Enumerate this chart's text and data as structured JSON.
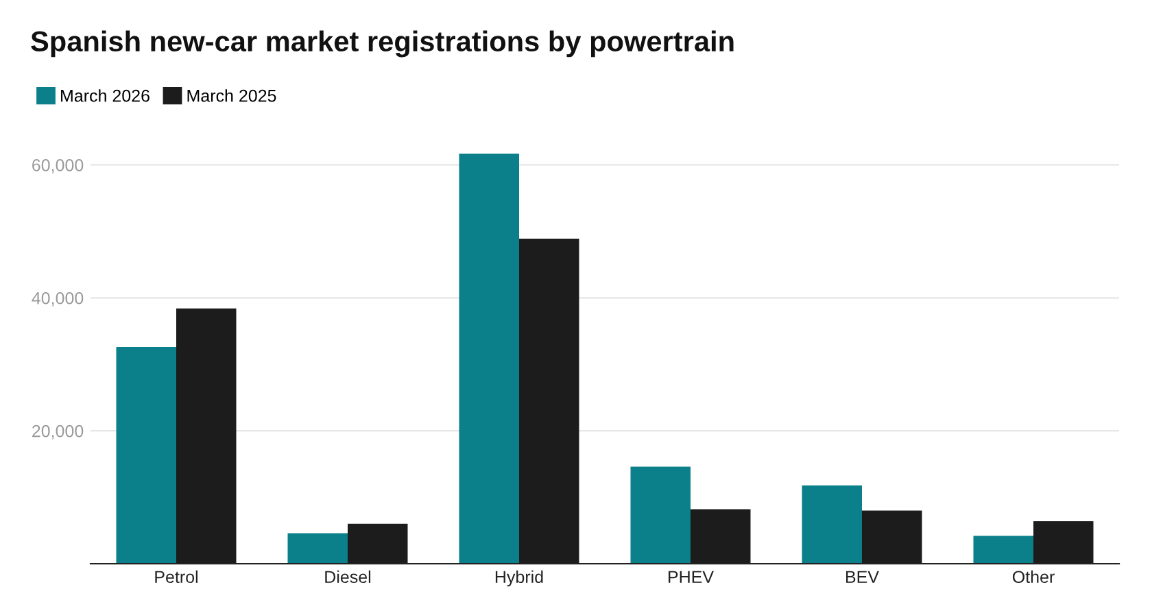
{
  "chart_data": {
    "type": "bar",
    "title": "Spanish new-car market registrations by powertrain",
    "categories": [
      "Petrol",
      "Diesel",
      "Hybrid",
      "PHEV",
      "BEV",
      "Other"
    ],
    "series": [
      {
        "name": "March 2026",
        "color": "#0b7f8a",
        "values": [
          32600,
          4600,
          61700,
          14600,
          11800,
          4200
        ]
      },
      {
        "name": "March 2025",
        "color": "#1c1c1c",
        "values": [
          38400,
          6000,
          48900,
          8200,
          8000,
          6400
        ]
      }
    ],
    "ylim": [
      0,
      61700
    ],
    "yticks": [
      {
        "value": 0,
        "label": null
      },
      {
        "value": 20000,
        "label": "20,000"
      },
      {
        "value": 40000,
        "label": "40,000"
      },
      {
        "value": 60000,
        "label": "60,000"
      }
    ],
    "grid": "y",
    "legend": "top left"
  }
}
